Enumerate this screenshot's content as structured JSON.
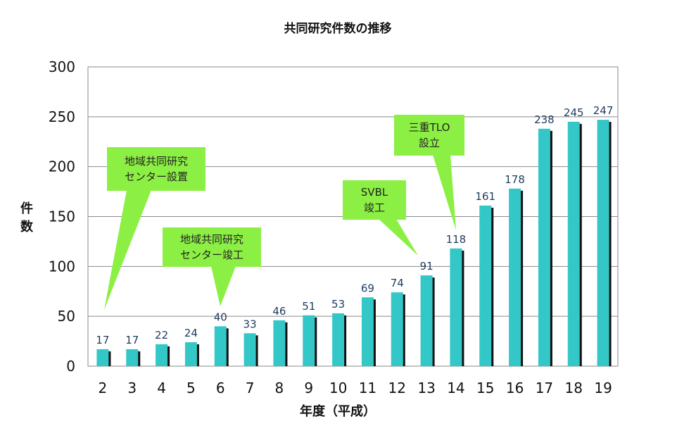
{
  "chart_data": {
    "type": "bar",
    "title": "共同研究件数の推移",
    "xlabel": "年度（平成）",
    "ylabel": "件数",
    "categories": [
      "2",
      "3",
      "4",
      "5",
      "6",
      "7",
      "8",
      "9",
      "10",
      "11",
      "12",
      "13",
      "14",
      "15",
      "16",
      "17",
      "18",
      "19"
    ],
    "values": [
      17,
      17,
      22,
      24,
      40,
      33,
      46,
      51,
      53,
      69,
      74,
      91,
      118,
      161,
      178,
      238,
      245,
      247
    ],
    "y_ticks": [
      "0",
      "50",
      "100",
      "150",
      "200",
      "250",
      "300"
    ],
    "ylim": [
      0,
      300
    ],
    "grid": true,
    "legend": "none",
    "colors": {
      "bar": "#33c7c7",
      "bar_shadow": "#111111",
      "callout": "#8cf044",
      "data_label": "#1f3a5f"
    },
    "annotations": [
      {
        "lines": [
          "地域共同研究",
          "センター設置"
        ],
        "category": "2"
      },
      {
        "lines": [
          "地域共同研究",
          "センター竣工"
        ],
        "category": "6"
      },
      {
        "lines": [
          "SVBL",
          "竣工"
        ],
        "category": "13"
      },
      {
        "lines": [
          "三重TLO",
          "設立"
        ],
        "category": "14"
      }
    ]
  }
}
